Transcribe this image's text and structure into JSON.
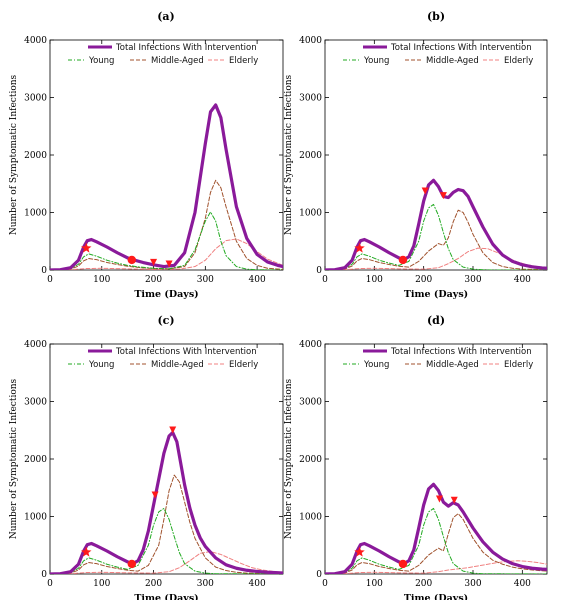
{
  "colors": {
    "total": "#8a1a9a",
    "young": "#22aa22",
    "middle": "#a0522d",
    "elderly": "#f08080",
    "marker": "#ff1a1a"
  },
  "chart_data": [
    {
      "type": "line",
      "title": "(a)",
      "xlabel": "Time (Days)",
      "ylabel": "Number of Symptomatic Infections",
      "xlim": [
        0,
        450
      ],
      "ylim": [
        0,
        4000
      ],
      "xticks": [
        0,
        100,
        200,
        300,
        400
      ],
      "yticks": [
        0,
        1000,
        2000,
        3000,
        4000
      ],
      "legend": [
        "Total Infections With Intervention",
        "Young",
        "Middle-Aged",
        "Elderly"
      ],
      "series": [
        {
          "name": "Total Infections With Intervention",
          "x": [
            0,
            20,
            40,
            55,
            65,
            72,
            80,
            90,
            110,
            130,
            150,
            160,
            180,
            200,
            220,
            240,
            260,
            280,
            300,
            310,
            320,
            330,
            340,
            360,
            380,
            400,
            420,
            440,
            450
          ],
          "y": [
            0,
            5,
            40,
            170,
            400,
            510,
            530,
            490,
            400,
            300,
            210,
            180,
            130,
            90,
            60,
            80,
            300,
            1000,
            2200,
            2750,
            2870,
            2650,
            2100,
            1100,
            550,
            270,
            140,
            80,
            60
          ]
        },
        {
          "name": "Young",
          "x": [
            0,
            20,
            40,
            55,
            65,
            75,
            90,
            110,
            130,
            150,
            170,
            200,
            230,
            260,
            280,
            300,
            310,
            320,
            330,
            340,
            360,
            380,
            400,
            450
          ],
          "y": [
            0,
            3,
            25,
            100,
            230,
            280,
            240,
            170,
            120,
            80,
            55,
            30,
            20,
            80,
            350,
            850,
            1010,
            850,
            500,
            250,
            60,
            15,
            5,
            0
          ]
        },
        {
          "name": "Middle-Aged",
          "x": [
            0,
            20,
            40,
            55,
            65,
            75,
            90,
            110,
            130,
            150,
            170,
            200,
            230,
            260,
            280,
            300,
            310,
            320,
            330,
            340,
            360,
            380,
            400,
            420,
            450
          ],
          "y": [
            0,
            2,
            15,
            70,
            160,
            200,
            180,
            130,
            95,
            65,
            45,
            25,
            20,
            60,
            300,
            900,
            1350,
            1560,
            1430,
            1100,
            500,
            200,
            80,
            30,
            10
          ]
        },
        {
          "name": "Elderly",
          "x": [
            0,
            40,
            70,
            100,
            150,
            200,
            250,
            280,
            300,
            320,
            340,
            360,
            380,
            400,
            420,
            450
          ],
          "y": [
            0,
            5,
            25,
            30,
            20,
            10,
            15,
            60,
            170,
            370,
            510,
            540,
            460,
            320,
            190,
            80
          ]
        }
      ],
      "markers": [
        {
          "shape": "star",
          "x": 70,
          "y": 380
        },
        {
          "shape": "circle",
          "x": 158,
          "y": 175
        },
        {
          "shape": "triangle",
          "x": 200,
          "y": 90
        },
        {
          "shape": "triangle",
          "x": 230,
          "y": 60
        }
      ]
    },
    {
      "type": "line",
      "title": "(b)",
      "xlabel": "Time (Days)",
      "ylabel": "Number of Symptomatic Infections",
      "xlim": [
        0,
        450
      ],
      "ylim": [
        0,
        4000
      ],
      "xticks": [
        0,
        100,
        200,
        300,
        400
      ],
      "yticks": [
        0,
        1000,
        2000,
        3000,
        4000
      ],
      "legend": [
        "Total Infections With Intervention",
        "Young",
        "Middle-Aged",
        "Elderly"
      ],
      "series": [
        {
          "name": "Total Infections With Intervention",
          "x": [
            0,
            20,
            40,
            55,
            65,
            72,
            80,
            90,
            110,
            130,
            150,
            160,
            170,
            180,
            190,
            200,
            210,
            220,
            230,
            240,
            250,
            260,
            270,
            280,
            290,
            300,
            320,
            340,
            360,
            380,
            400,
            420,
            440,
            450
          ],
          "y": [
            0,
            5,
            40,
            170,
            400,
            510,
            530,
            490,
            400,
            300,
            210,
            180,
            230,
            420,
            800,
            1200,
            1480,
            1560,
            1450,
            1280,
            1260,
            1350,
            1400,
            1380,
            1280,
            1100,
            750,
            450,
            260,
            150,
            90,
            55,
            35,
            30
          ]
        },
        {
          "name": "Young",
          "x": [
            0,
            20,
            40,
            55,
            65,
            75,
            90,
            110,
            130,
            150,
            170,
            190,
            200,
            210,
            220,
            230,
            240,
            250,
            260,
            280,
            300,
            320,
            340,
            450
          ],
          "y": [
            0,
            3,
            25,
            100,
            230,
            280,
            240,
            170,
            120,
            80,
            150,
            500,
            850,
            1080,
            1140,
            950,
            650,
            370,
            180,
            50,
            15,
            5,
            0,
            0
          ]
        },
        {
          "name": "Middle-Aged",
          "x": [
            0,
            20,
            40,
            55,
            65,
            75,
            90,
            110,
            130,
            150,
            170,
            190,
            210,
            230,
            240,
            250,
            260,
            270,
            280,
            290,
            300,
            320,
            340,
            360,
            380,
            400,
            450
          ],
          "y": [
            0,
            2,
            15,
            70,
            160,
            200,
            180,
            130,
            95,
            65,
            50,
            150,
            330,
            460,
            430,
            560,
            840,
            1040,
            1000,
            830,
            620,
            300,
            130,
            60,
            30,
            15,
            5
          ]
        },
        {
          "name": "Elderly",
          "x": [
            0,
            40,
            70,
            100,
            150,
            200,
            230,
            250,
            270,
            290,
            310,
            330,
            350,
            370,
            390,
            410,
            430,
            450
          ],
          "y": [
            0,
            5,
            25,
            30,
            20,
            15,
            40,
            110,
            200,
            320,
            380,
            370,
            300,
            210,
            140,
            90,
            60,
            40
          ]
        }
      ],
      "markers": [
        {
          "shape": "star",
          "x": 70,
          "y": 380
        },
        {
          "shape": "circle",
          "x": 158,
          "y": 175
        },
        {
          "shape": "triangle",
          "x": 203,
          "y": 1330
        },
        {
          "shape": "triangle",
          "x": 240,
          "y": 1250
        }
      ]
    },
    {
      "type": "line",
      "title": "(c)",
      "xlabel": "Time (Days)",
      "ylabel": "Number of Symptomatic Infections",
      "xlim": [
        0,
        450
      ],
      "ylim": [
        0,
        4000
      ],
      "xticks": [
        0,
        100,
        200,
        300,
        400
      ],
      "yticks": [
        0,
        1000,
        2000,
        3000,
        4000
      ],
      "legend": [
        "Total Infections With Intervention",
        "Young",
        "Middle-Aged",
        "Elderly"
      ],
      "series": [
        {
          "name": "Total Infections With Intervention",
          "x": [
            0,
            20,
            40,
            55,
            65,
            72,
            80,
            90,
            110,
            130,
            150,
            160,
            170,
            180,
            190,
            200,
            210,
            220,
            230,
            237,
            245,
            250,
            260,
            270,
            280,
            290,
            300,
            320,
            340,
            360,
            380,
            400,
            420,
            440,
            450
          ],
          "y": [
            0,
            5,
            40,
            170,
            400,
            510,
            530,
            490,
            400,
            300,
            210,
            180,
            230,
            420,
            750,
            1200,
            1650,
            2100,
            2400,
            2460,
            2300,
            2050,
            1550,
            1150,
            850,
            630,
            480,
            280,
            160,
            100,
            65,
            45,
            30,
            22,
            18
          ]
        },
        {
          "name": "Young",
          "x": [
            0,
            20,
            40,
            55,
            65,
            75,
            90,
            110,
            130,
            150,
            170,
            190,
            200,
            210,
            220,
            230,
            240,
            250,
            260,
            280,
            300,
            320,
            450
          ],
          "y": [
            0,
            3,
            25,
            100,
            230,
            280,
            240,
            170,
            120,
            80,
            150,
            500,
            850,
            1080,
            1140,
            950,
            650,
            370,
            180,
            50,
            15,
            5,
            0
          ]
        },
        {
          "name": "Middle-Aged",
          "x": [
            0,
            20,
            40,
            55,
            65,
            75,
            90,
            110,
            130,
            150,
            170,
            190,
            210,
            220,
            230,
            240,
            250,
            260,
            270,
            280,
            300,
            320,
            340,
            360,
            380,
            450
          ],
          "y": [
            0,
            2,
            15,
            70,
            160,
            200,
            180,
            130,
            95,
            65,
            50,
            150,
            500,
            950,
            1450,
            1720,
            1600,
            1250,
            900,
            620,
            280,
            120,
            60,
            30,
            15,
            5
          ]
        },
        {
          "name": "Elderly",
          "x": [
            0,
            40,
            70,
            100,
            150,
            200,
            230,
            250,
            270,
            290,
            310,
            330,
            350,
            370,
            390,
            410,
            430,
            450
          ],
          "y": [
            0,
            5,
            25,
            30,
            20,
            15,
            40,
            110,
            230,
            360,
            390,
            340,
            260,
            180,
            110,
            70,
            45,
            30
          ]
        }
      ],
      "markers": [
        {
          "shape": "star",
          "x": 70,
          "y": 380
        },
        {
          "shape": "circle",
          "x": 158,
          "y": 175
        },
        {
          "shape": "triangle",
          "x": 203,
          "y": 1330
        },
        {
          "shape": "triangle",
          "x": 237,
          "y": 2460
        }
      ]
    },
    {
      "type": "line",
      "title": "(d)",
      "xlabel": "Time (Days)",
      "ylabel": "Number of Symptomatic Infections",
      "xlim": [
        0,
        450
      ],
      "ylim": [
        0,
        4000
      ],
      "xticks": [
        0,
        100,
        200,
        300,
        400
      ],
      "yticks": [
        0,
        1000,
        2000,
        3000,
        4000
      ],
      "legend": [
        "Total Infections With Intervention",
        "Young",
        "Middle-Aged",
        "Elderly"
      ],
      "series": [
        {
          "name": "Total Infections With Intervention",
          "x": [
            0,
            20,
            40,
            55,
            65,
            72,
            80,
            90,
            110,
            130,
            150,
            160,
            170,
            180,
            190,
            200,
            210,
            220,
            230,
            240,
            250,
            260,
            270,
            280,
            300,
            320,
            340,
            360,
            380,
            400,
            420,
            440,
            450
          ],
          "y": [
            0,
            5,
            40,
            170,
            400,
            510,
            530,
            490,
            400,
            300,
            210,
            180,
            230,
            420,
            800,
            1200,
            1480,
            1560,
            1450,
            1250,
            1180,
            1240,
            1200,
            1080,
            800,
            560,
            380,
            260,
            180,
            130,
            100,
            85,
            80
          ]
        },
        {
          "name": "Young",
          "x": [
            0,
            20,
            40,
            55,
            65,
            75,
            90,
            110,
            130,
            150,
            170,
            190,
            200,
            210,
            220,
            230,
            240,
            250,
            260,
            280,
            300,
            320,
            450
          ],
          "y": [
            0,
            3,
            25,
            100,
            230,
            280,
            240,
            170,
            120,
            80,
            150,
            500,
            850,
            1080,
            1140,
            950,
            650,
            370,
            180,
            50,
            15,
            5,
            0
          ]
        },
        {
          "name": "Middle-Aged",
          "x": [
            0,
            20,
            40,
            55,
            65,
            75,
            90,
            110,
            130,
            150,
            170,
            190,
            210,
            230,
            240,
            250,
            260,
            270,
            280,
            300,
            320,
            340,
            360,
            380,
            400,
            420,
            450
          ],
          "y": [
            0,
            2,
            15,
            70,
            160,
            200,
            180,
            130,
            95,
            65,
            50,
            150,
            330,
            450,
            400,
            700,
            980,
            1050,
            950,
            620,
            380,
            240,
            170,
            120,
            90,
            70,
            50
          ]
        },
        {
          "name": "Elderly",
          "x": [
            0,
            40,
            70,
            100,
            150,
            200,
            230,
            250,
            270,
            290,
            310,
            330,
            350,
            370,
            390,
            410,
            430,
            450
          ],
          "y": [
            0,
            5,
            25,
            30,
            20,
            15,
            40,
            70,
            90,
            110,
            140,
            170,
            200,
            220,
            230,
            220,
            200,
            170
          ]
        }
      ],
      "markers": [
        {
          "shape": "star",
          "x": 70,
          "y": 380
        },
        {
          "shape": "circle",
          "x": 158,
          "y": 175
        },
        {
          "shape": "triangle",
          "x": 232,
          "y": 1260
        },
        {
          "shape": "triangle",
          "x": 262,
          "y": 1240
        }
      ]
    }
  ]
}
